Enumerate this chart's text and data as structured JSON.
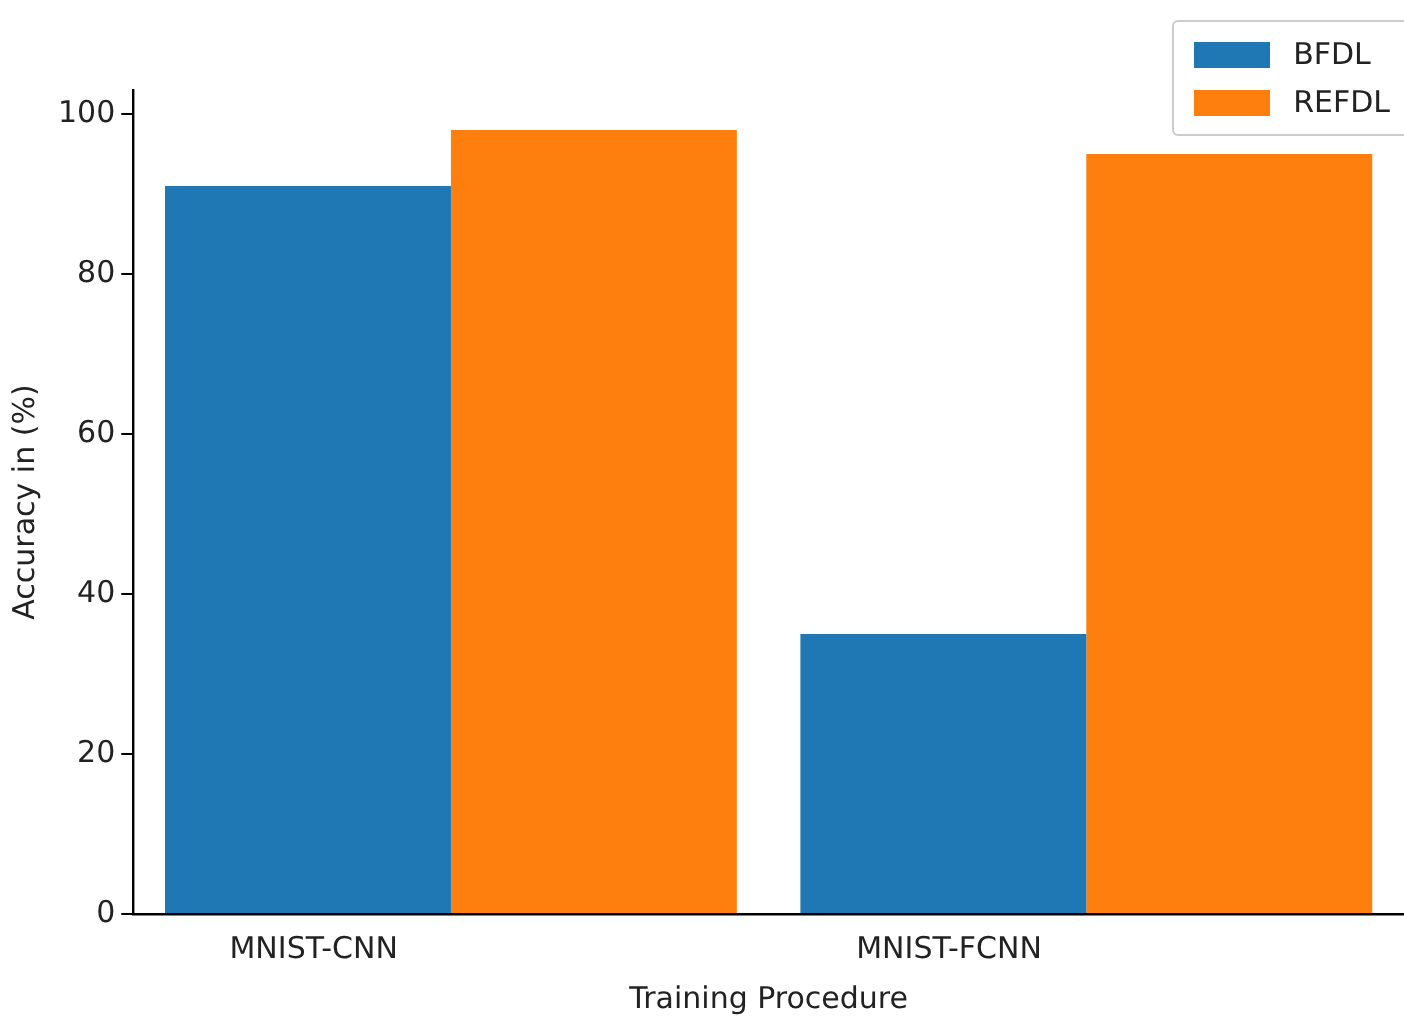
{
  "chart_data": {
    "type": "bar",
    "xlabel": "Training Procedure",
    "ylabel": "Accuracy in (%)",
    "categories": [
      "MNIST-CNN",
      "MNIST-FCNN"
    ],
    "series": [
      {
        "name": "BFDL",
        "color": "#1f77b4",
        "values": [
          91,
          35
        ]
      },
      {
        "name": "REFDL",
        "color": "#ff7f0e",
        "values": [
          98,
          95
        ]
      }
    ],
    "ylim": [
      0,
      103
    ],
    "yticks": [
      0,
      20,
      40,
      60,
      80,
      100
    ],
    "grid": false,
    "legend": "top right"
  }
}
